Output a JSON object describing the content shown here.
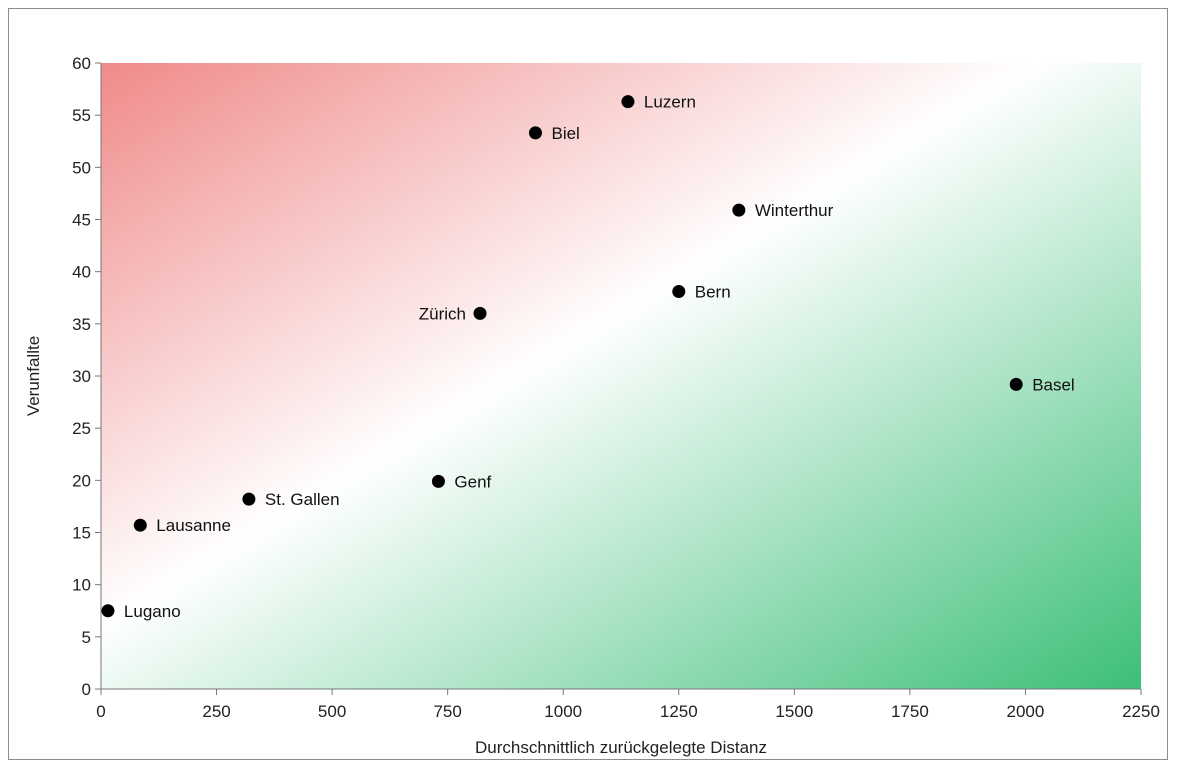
{
  "chart_data": {
    "type": "scatter",
    "title": "",
    "xlabel": "Durchschnittlich zurückgelegte Distanz",
    "ylabel": "Verunfallte",
    "xlim": [
      0,
      2250
    ],
    "ylim": [
      0,
      60
    ],
    "xticks": [
      "0",
      "250",
      "500",
      "750",
      "1000",
      "1250",
      "1500",
      "1750",
      "2000",
      "2250"
    ],
    "yticks": [
      "0",
      "5",
      "10",
      "15",
      "20",
      "25",
      "30",
      "35",
      "40",
      "45",
      "50",
      "55",
      "60"
    ],
    "grid": false,
    "legend": "none",
    "background": "gradient red (top-left) to green (bottom-right)",
    "colors": {
      "red": "#f08a8a",
      "green": "#3cbf78",
      "point": "#000000"
    },
    "points": [
      {
        "label": "Lugano",
        "x": 15,
        "y": 7.5,
        "label_side": "right"
      },
      {
        "label": "Lausanne",
        "x": 85,
        "y": 15.7,
        "label_side": "right"
      },
      {
        "label": "St. Gallen",
        "x": 320,
        "y": 18.2,
        "label_side": "right"
      },
      {
        "label": "Genf",
        "x": 730,
        "y": 19.9,
        "label_side": "right"
      },
      {
        "label": "Zürich",
        "x": 820,
        "y": 36,
        "label_side": "left"
      },
      {
        "label": "Biel",
        "x": 940,
        "y": 53.3,
        "label_side": "right"
      },
      {
        "label": "Luzern",
        "x": 1140,
        "y": 56.3,
        "label_side": "right"
      },
      {
        "label": "Bern",
        "x": 1250,
        "y": 38.1,
        "label_side": "right"
      },
      {
        "label": "Winterthur",
        "x": 1380,
        "y": 45.9,
        "label_side": "right"
      },
      {
        "label": "Basel",
        "x": 1980,
        "y": 29.2,
        "label_side": "right"
      }
    ]
  }
}
